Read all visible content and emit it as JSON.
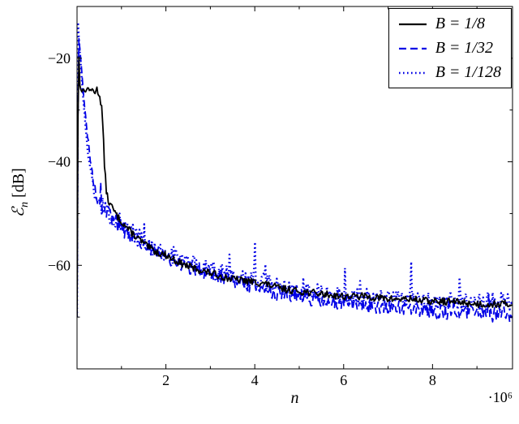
{
  "chart_data": {
    "type": "line",
    "title": "",
    "xlabel": "n",
    "x_scale_label": "·10⁶",
    "ylabel": "ℰn [dB]",
    "ylabel_parts": {
      "symbol": "ℰ",
      "subscript": "n",
      "unit": "[dB]"
    },
    "xlim": [
      0,
      9.8
    ],
    "ylim": [
      -80,
      -10
    ],
    "x_unit": 1000000,
    "xticks": [
      2,
      4,
      6,
      8
    ],
    "xticks_minor": [
      1,
      3,
      5,
      7,
      9
    ],
    "yticks": [
      -20,
      -40,
      -60
    ],
    "yticks_minor": [
      -10,
      -30,
      -50,
      -70
    ],
    "grid": false,
    "legend_position": "top-right",
    "axis_color": "#000000",
    "series": [
      {
        "name": "B = 1/8",
        "color": "#000000",
        "style": "solid",
        "noise_db": 0.7,
        "spike_prob": 0.0,
        "spike_db": 0,
        "seed": 13,
        "anchors_x": [
          0,
          0.03,
          0.06,
          0.1,
          0.15,
          0.2,
          0.25,
          0.3,
          0.35,
          0.4,
          0.45,
          0.5,
          0.55,
          0.58,
          0.62,
          0.66,
          0.7,
          0.8,
          0.9,
          1.0,
          1.2,
          1.4,
          1.6,
          1.8,
          2.0,
          2.3,
          2.6,
          3.0,
          3.4,
          3.8,
          4.2,
          4.6,
          5.0,
          5.5,
          6.0,
          6.5,
          7.0,
          7.5,
          8.0,
          8.5,
          9.0,
          9.5,
          9.8
        ],
        "anchors_y": [
          -70,
          -16,
          -25,
          -26.5,
          -26,
          -26.5,
          -25.5,
          -26.5,
          -26,
          -26.5,
          -26,
          -27,
          -29,
          -33,
          -41,
          -45.5,
          -47.5,
          -49,
          -50.5,
          -51.5,
          -53.5,
          -55,
          -56.5,
          -57.5,
          -58,
          -59.5,
          -60.5,
          -61.5,
          -62.5,
          -63,
          -63.5,
          -64.5,
          -65,
          -65.5,
          -66,
          -66,
          -66.5,
          -66.5,
          -67,
          -67,
          -67.5,
          -67.5,
          -67.5
        ]
      },
      {
        "name": "B = 1/32",
        "color": "#0000e6",
        "style": "dashed",
        "noise_db": 1.5,
        "spike_prob": 0.012,
        "spike_db": 4,
        "seed": 101,
        "anchors_x": [
          0,
          0.03,
          0.07,
          0.12,
          0.18,
          0.25,
          0.32,
          0.4,
          0.48,
          0.56,
          0.65,
          0.75,
          0.9,
          1.1,
          1.3,
          1.6,
          1.9,
          2.2,
          2.6,
          3.0,
          3.4,
          3.8,
          4.2,
          4.6,
          5.0,
          5.4,
          5.8,
          6.2,
          6.6,
          7.0,
          7.4,
          7.8,
          8.2,
          8.6,
          9.0,
          9.4,
          9.8
        ],
        "anchors_y": [
          -70,
          -15,
          -19,
          -24,
          -30,
          -36,
          -41,
          -45,
          -47.5,
          -48.5,
          -49.5,
          -50.5,
          -52,
          -53.5,
          -55,
          -56.5,
          -58,
          -59,
          -60.5,
          -61.5,
          -62.5,
          -63.5,
          -64.5,
          -65.5,
          -66,
          -66.5,
          -67,
          -67.5,
          -68,
          -68,
          -68.5,
          -68.5,
          -69,
          -69,
          -69,
          -69.5,
          -69.5
        ]
      },
      {
        "name": "B = 1/128",
        "color": "#0000e6",
        "style": "dotted",
        "noise_db": 1.8,
        "spike_prob": 0.035,
        "spike_db": 7,
        "seed": 777,
        "anchors_x": [
          0,
          0.02,
          0.05,
          0.09,
          0.14,
          0.2,
          0.27,
          0.34,
          0.42,
          0.5,
          0.6,
          0.72,
          0.86,
          1.0,
          1.2,
          1.45,
          1.7,
          2.0,
          2.3,
          2.7,
          3.1,
          3.5,
          3.9,
          4.3,
          4.7,
          5.1,
          5.5,
          5.9,
          6.3,
          6.7,
          7.1,
          7.5,
          7.9,
          8.3,
          8.7,
          9.1,
          9.5,
          9.8
        ],
        "anchors_y": [
          -70,
          -13,
          -17,
          -22,
          -28,
          -34,
          -40,
          -44,
          -46.5,
          -48,
          -49,
          -50,
          -51,
          -52,
          -53.5,
          -55,
          -56.5,
          -57.5,
          -58.5,
          -60,
          -61,
          -62,
          -63,
          -63.5,
          -64.5,
          -65,
          -65.5,
          -66,
          -66,
          -66.5,
          -66.5,
          -66.5,
          -67,
          -67,
          -67,
          -67,
          -67,
          -67
        ]
      }
    ]
  }
}
